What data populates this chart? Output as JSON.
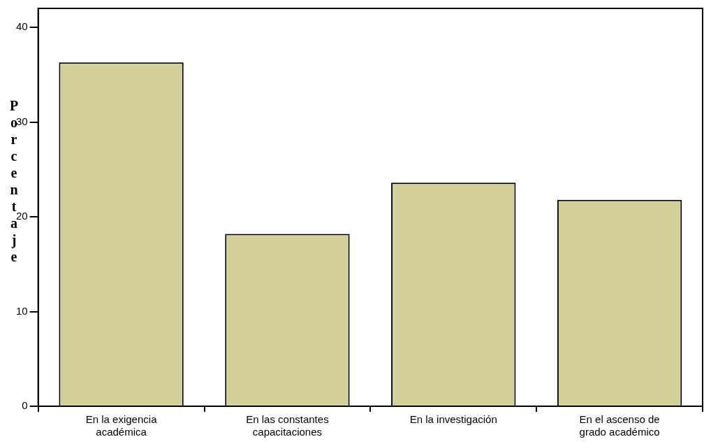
{
  "chart_data": {
    "type": "bar",
    "ylabel": "Porcentaje",
    "categories": [
      "En la exigencia académica",
      "En las constantes capacitaciones",
      "En la investigación",
      "En el ascenso de grado académico"
    ],
    "values": [
      36.3,
      18.2,
      23.6,
      21.8
    ],
    "color": "#d3cf98",
    "ylim": [
      0,
      42
    ],
    "yticks": [
      0,
      10,
      20,
      30,
      40
    ],
    "grid": false,
    "legend": false
  }
}
